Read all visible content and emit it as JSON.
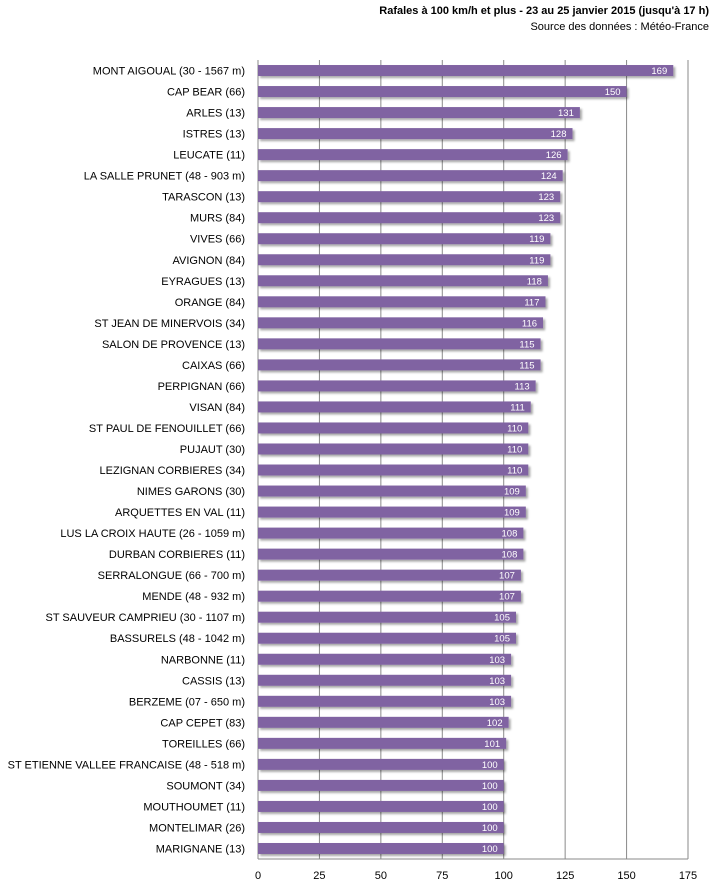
{
  "chart_data": {
    "type": "bar",
    "orientation": "horizontal",
    "title": "Rafales à 100 km/h et plus - 23 au 25 janvier 2015 (jusqu'à 17 h)",
    "subtitle": "Source des données : Météo-France",
    "xlabel": "",
    "ylabel": "",
    "xlim": [
      0,
      175
    ],
    "xticks": [
      0,
      25,
      50,
      75,
      100,
      125,
      150,
      175
    ],
    "grid": true,
    "bar_color": "#8064a2",
    "categories": [
      "MONT AIGOUAL (30 - 1567 m)",
      "CAP BEAR (66)",
      "ARLES (13)",
      "ISTRES (13)",
      "LEUCATE (11)",
      "LA SALLE PRUNET (48 - 903 m)",
      "TARASCON (13)",
      "MURS (84)",
      "VIVES (66)",
      "AVIGNON (84)",
      "EYRAGUES (13)",
      "ORANGE (84)",
      "ST JEAN DE MINERVOIS (34)",
      "SALON DE PROVENCE (13)",
      "CAIXAS (66)",
      "PERPIGNAN (66)",
      "VISAN (84)",
      "ST PAUL DE FENOUILLET (66)",
      "PUJAUT (30)",
      "LEZIGNAN CORBIERES (34)",
      "NIMES GARONS (30)",
      "ARQUETTES EN VAL (11)",
      "LUS LA CROIX HAUTE (26 - 1059 m)",
      "DURBAN CORBIERES (11)",
      "SERRALONGUE (66 - 700 m)",
      "MENDE (48 - 932 m)",
      "ST SAUVEUR CAMPRIEU (30 - 1107 m)",
      "BASSURELS (48 - 1042 m)",
      "NARBONNE (11)",
      "CASSIS (13)",
      "BERZEME (07 - 650 m)",
      "CAP CEPET (83)",
      "TOREILLES (66)",
      "ST ETIENNE VALLEE FRANCAISE (48 - 518 m)",
      "SOUMONT (34)",
      "MOUTHOUMET (11)",
      "MONTELIMAR (26)",
      "MARIGNANE (13)"
    ],
    "values": [
      169,
      150,
      131,
      128,
      126,
      124,
      123,
      123,
      119,
      119,
      118,
      117,
      116,
      115,
      115,
      113,
      111,
      110,
      110,
      110,
      109,
      109,
      108,
      108,
      107,
      107,
      105,
      105,
      103,
      103,
      103,
      102,
      101,
      100,
      100,
      100,
      100,
      100
    ]
  }
}
